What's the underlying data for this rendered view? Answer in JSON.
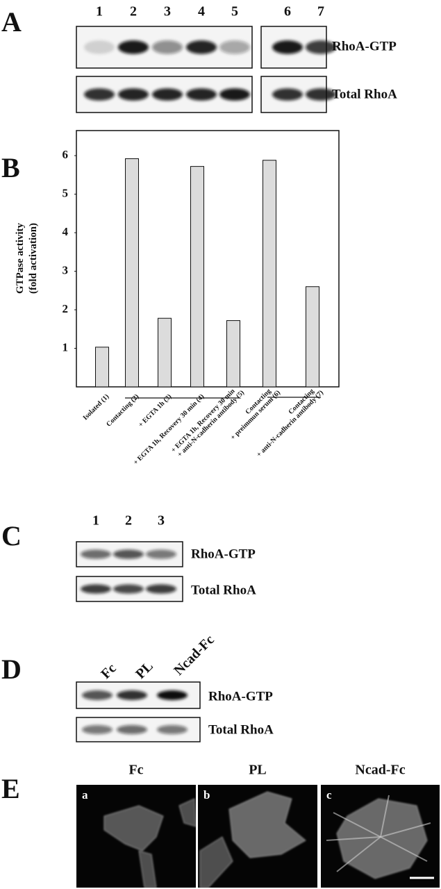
{
  "panels": {
    "A": {
      "label": "A",
      "lanes": [
        "1",
        "2",
        "3",
        "4",
        "5",
        "6",
        "7"
      ],
      "rows": [
        "RhoA-GTP",
        "Total RhoA"
      ]
    },
    "B": {
      "label": "B"
    },
    "C": {
      "label": "C",
      "lanes": [
        "1",
        "2",
        "3"
      ],
      "rows": [
        "RhoA-GTP",
        "Total RhoA"
      ]
    },
    "D": {
      "label": "D",
      "lanes": [
        "Fc",
        "PL",
        "Ncad-Fc"
      ],
      "rows": [
        "RhoA-GTP",
        "Total RhoA"
      ]
    },
    "E": {
      "label": "E",
      "titles": [
        "Fc",
        "PL",
        "Ncad-Fc"
      ],
      "subpanels": [
        "a",
        "b",
        "c"
      ]
    }
  },
  "chart_data": {
    "type": "bar",
    "y_label": [
      "GTPase activity",
      "(fold activation)"
    ],
    "categories": [
      [
        "Isolated (1)"
      ],
      [
        "Contacting (2)"
      ],
      [
        "+ EGTA 1h (3)"
      ],
      [
        "+ EGTA 1h, Recovery 30 min (4)"
      ],
      [
        "+ EGTA 1h, Recovery 30 min",
        "+ anti-N-cadherin antibody (5)"
      ],
      [
        "Contacting",
        "+ preimmun serum (6)"
      ],
      [
        "Contacting",
        "+ anti-N-cadherin antibody (7)"
      ]
    ],
    "values": [
      1.03,
      5.92,
      1.78,
      5.72,
      1.72,
      5.88,
      2.6
    ],
    "color": "#dcdcdc",
    "ylim": [
      0,
      6.65
    ],
    "yticks": [
      1,
      2,
      3,
      4,
      5,
      6
    ]
  }
}
